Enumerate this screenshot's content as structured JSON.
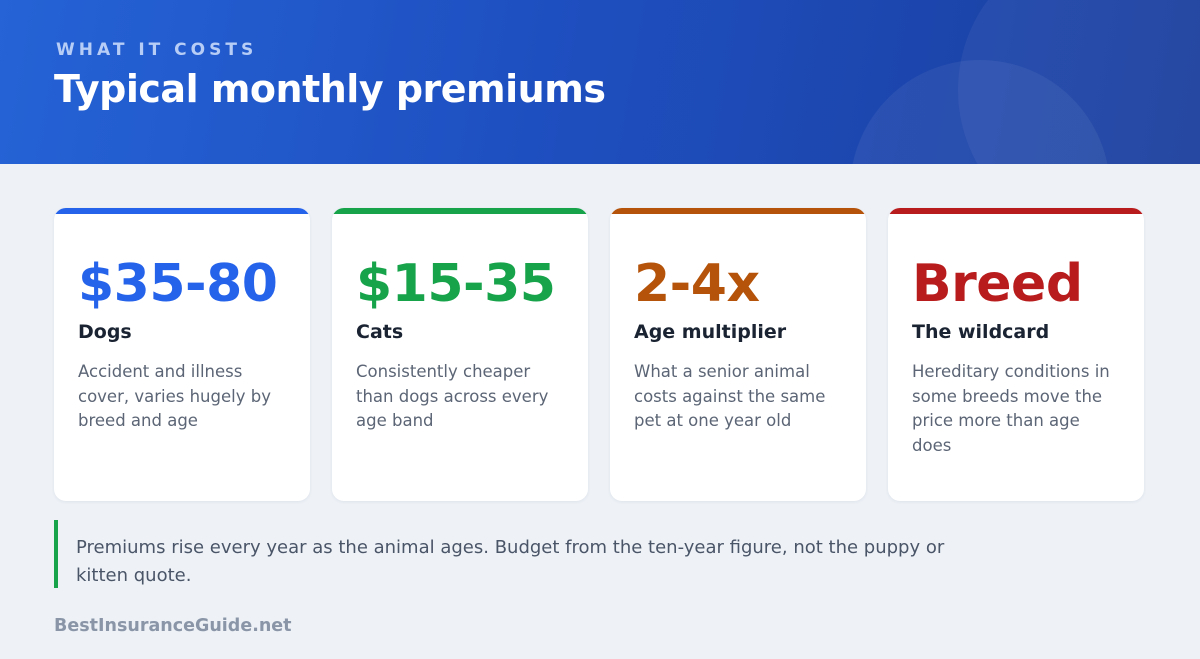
{
  "header": {
    "eyebrow": "WHAT IT COSTS",
    "title": "Typical monthly premiums"
  },
  "cards": [
    {
      "value": "$35-80",
      "label": "Dogs",
      "description": "Accident and illness cover, varies hugely by breed and age",
      "color": "#2563eb"
    },
    {
      "value": "$15-35",
      "label": "Cats",
      "description": "Consistently cheaper than dogs across every age band",
      "color": "#16a34a"
    },
    {
      "value": "2-4x",
      "label": "Age multiplier",
      "description": "What a senior animal costs against the same pet at one year old",
      "color": "#b45309"
    },
    {
      "value": "Breed",
      "label": "The wildcard",
      "description": "Hereditary conditions in some breeds move the price more than age does",
      "color": "#b91c1c"
    }
  ],
  "note": "Premiums rise every year as the animal ages. Budget from the ten-year figure, not the puppy or kitten quote.",
  "footer": "BestInsuranceGuide.net"
}
